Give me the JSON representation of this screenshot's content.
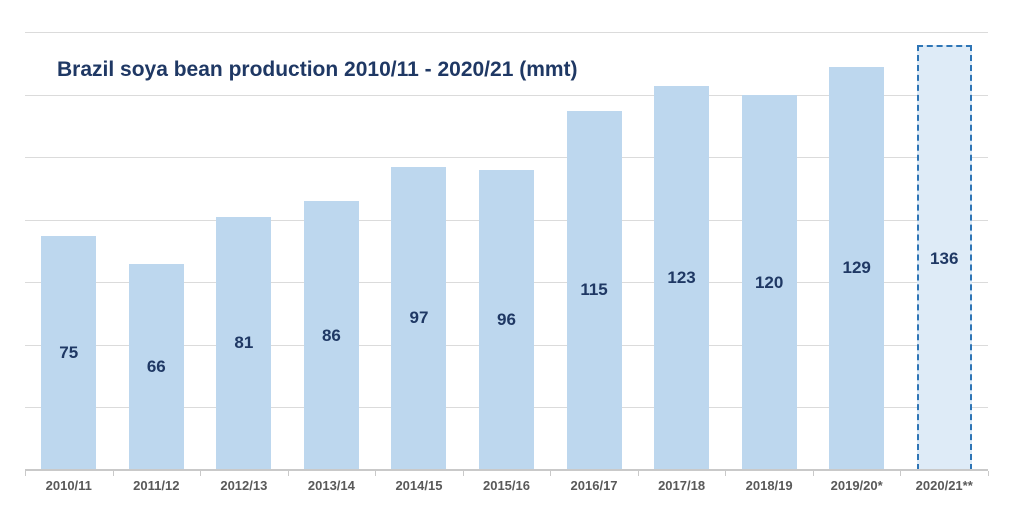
{
  "chart_data": {
    "type": "bar",
    "title": "Brazil soya bean production 2010/11 - 2020/21 (mmt)",
    "categories": [
      "2010/11",
      "2011/12",
      "2012/13",
      "2013/14",
      "2014/15",
      "2015/16",
      "2016/17",
      "2017/18",
      "2018/19",
      "2019/20*",
      "2020/21**"
    ],
    "values": [
      75,
      66,
      81,
      86,
      97,
      96,
      115,
      123,
      120,
      129,
      136
    ],
    "highlight_index": 10,
    "highlight_style": "dashed-outline-forecast-bar",
    "value_labels": "inside-center",
    "xlabel": "",
    "ylabel": "",
    "ylim": [
      0,
      150
    ],
    "gridline_step": 20,
    "grid": true,
    "legend": false
  },
  "colors": {
    "bar_fill": "#BDD7EE",
    "highlight_fill": "#DEEBF7",
    "highlight_border": "#2E75B6",
    "title_text": "#1F3864",
    "value_label_text": "#1F3864",
    "axis_label_text": "#595959",
    "gridline": "#DBDBDB",
    "axis_line": "#C9C9C9"
  }
}
